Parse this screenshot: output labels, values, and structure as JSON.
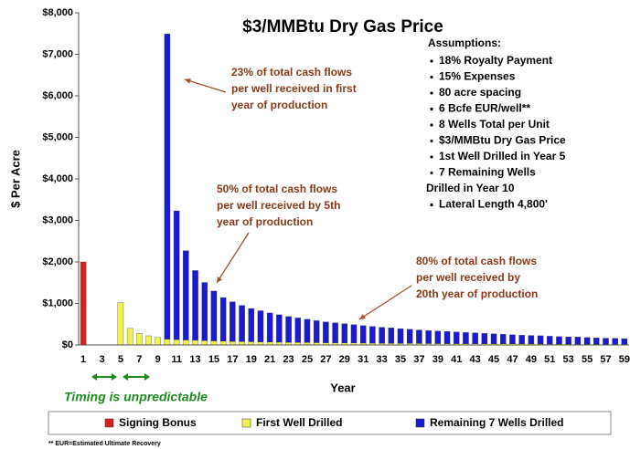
{
  "chart_data": {
    "type": "bar",
    "stacked": true,
    "title": "$3/MMBtu Dry Gas Price",
    "y_label": "$ Per Acre",
    "x_label": "Year",
    "categories": [
      1,
      null,
      3,
      null,
      5,
      null,
      7,
      null,
      9,
      null,
      11,
      null,
      13,
      null,
      15,
      null,
      17,
      null,
      19,
      null,
      21,
      null,
      23,
      null,
      25,
      null,
      27,
      null,
      29,
      null,
      31,
      null,
      33,
      null,
      35,
      null,
      37,
      null,
      39,
      null,
      41,
      null,
      43,
      null,
      45,
      null,
      47,
      null,
      49,
      null,
      51,
      null,
      53,
      null,
      55,
      null,
      57,
      null,
      59
    ],
    "series": [
      {
        "name": "Signing Bonus",
        "color": "#d42020",
        "values": [
          2000,
          null,
          null,
          null,
          null,
          null,
          null,
          null,
          null,
          null,
          null,
          null,
          null,
          null,
          null,
          null,
          null,
          null,
          null,
          null,
          null,
          null,
          null,
          null,
          null,
          null,
          null,
          null,
          null,
          null,
          null,
          null,
          null,
          null,
          null,
          null,
          null,
          null,
          null,
          null,
          null,
          null,
          null,
          null,
          null,
          null,
          null,
          null,
          null,
          null,
          null,
          null,
          null,
          null,
          null,
          null,
          null,
          null,
          null
        ]
      },
      {
        "name": "First Well Drilled",
        "color": "#f2f24a",
        "values": [
          null,
          null,
          null,
          null,
          1020,
          400,
          280,
          220,
          180,
          140,
          130,
          120,
          112,
          105,
          98,
          92,
          87,
          82,
          78,
          74,
          70,
          67,
          64,
          61,
          58,
          55,
          53,
          51,
          49,
          47,
          45,
          43,
          41,
          40,
          38,
          37,
          35,
          34,
          33,
          32,
          31,
          30,
          29,
          28,
          27,
          26,
          25,
          24,
          23,
          22,
          21,
          21,
          20,
          20,
          19,
          19,
          18,
          18,
          17
        ]
      },
      {
        "name": "Remaining 7 Wells Drilled",
        "color": "#1a1ad0",
        "values": [
          null,
          null,
          null,
          null,
          null,
          null,
          null,
          null,
          null,
          7350,
          3100,
          2150,
          1680,
          1400,
          1200,
          1050,
          950,
          870,
          800,
          750,
          700,
          660,
          620,
          590,
          560,
          530,
          500,
          480,
          460,
          440,
          420,
          400,
          385,
          370,
          355,
          340,
          325,
          310,
          300,
          290,
          280,
          270,
          260,
          250,
          240,
          230,
          220,
          210,
          205,
          200,
          190,
          180,
          175,
          170,
          160,
          150,
          145,
          140,
          135
        ]
      }
    ],
    "ylim": [
      0,
      8000
    ],
    "yticks": [
      {
        "value": 0,
        "label": "$0"
      },
      {
        "value": 1000,
        "label": "$1,000"
      },
      {
        "value": 2000,
        "label": "$2,000"
      },
      {
        "value": 3000,
        "label": "$3,000"
      },
      {
        "value": 4000,
        "label": "$4,000"
      },
      {
        "value": 5000,
        "label": "$5,000"
      },
      {
        "value": 6000,
        "label": "$6,000"
      },
      {
        "value": 7000,
        "label": "$7,000"
      },
      {
        "value": 8000,
        "label": "$8,000"
      }
    ],
    "grid": false,
    "legend": "bottom",
    "assumptions": {
      "title": "Assumptions:",
      "items": [
        "18% Royalty Payment",
        "15% Expenses",
        "80 acre spacing",
        "6 Bcfe EUR/well**",
        "8 Wells Total per Unit",
        "$3/MMBtu Dry Gas Price",
        "1st Well Drilled in Year 5",
        [
          "7 Remaining Wells",
          "Drilled in Year 10"
        ],
        "Lateral Length 4,800'"
      ]
    },
    "annotations": [
      [
        "23% of total cash flows",
        "per well received in first",
        "year of production"
      ],
      [
        "50% of total cash flows",
        "per well received by 5th",
        "year of production"
      ],
      [
        "80% of total cash flows",
        "per well received by",
        "20th year of production"
      ]
    ],
    "timing_note": "Timing is unpredictable",
    "footnote": "** EUR=Estimated Ultimate Recovery"
  }
}
